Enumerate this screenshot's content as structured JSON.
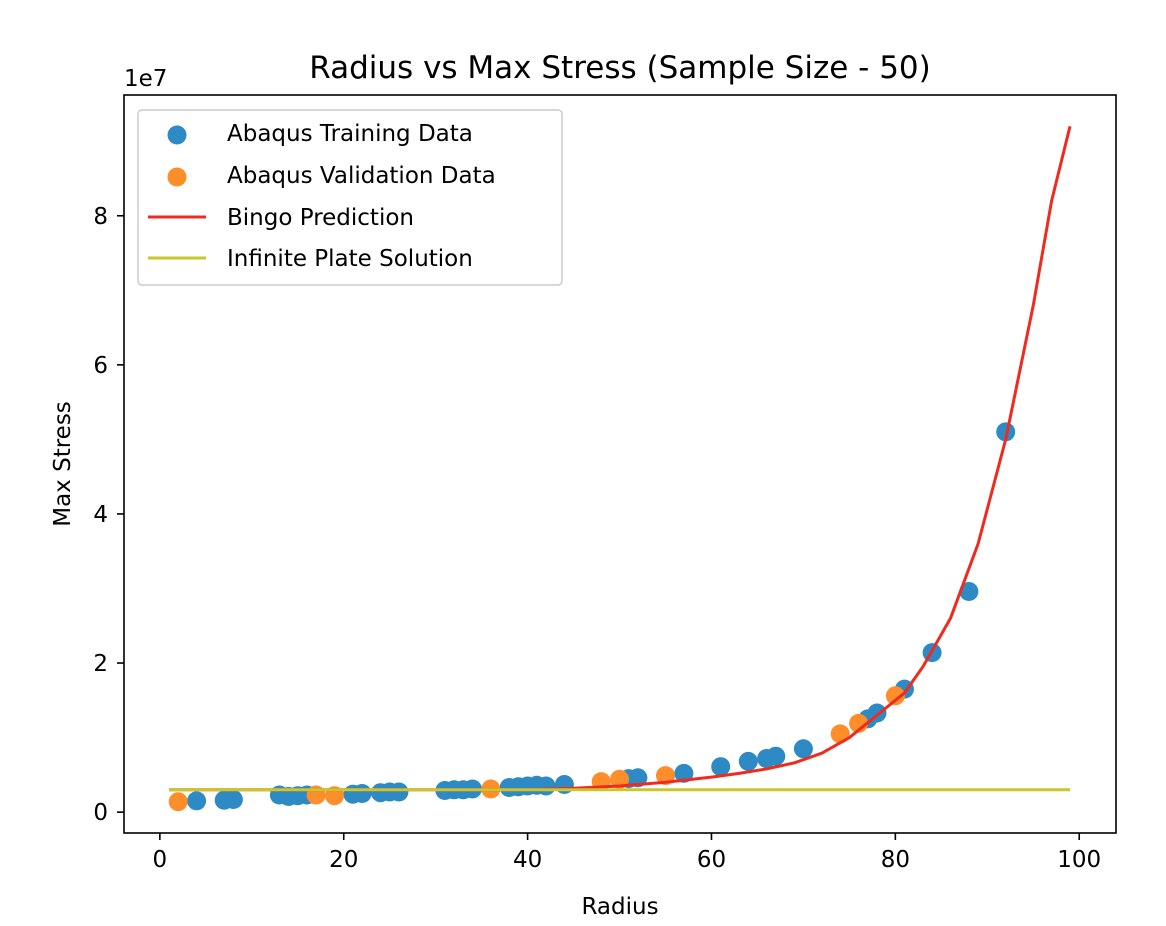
{
  "chart_data": {
    "type": "scatter",
    "title": "Radius vs Max Stress (Sample Size - 50)",
    "xlabel": "Radius",
    "ylabel": "Max Stress",
    "y_multiplier_label": "1e7",
    "xlim": [
      -3.9,
      104
    ],
    "ylim": [
      -0.28,
      9.62
    ],
    "xticks": [
      0,
      20,
      40,
      60,
      80,
      100
    ],
    "yticks": [
      0,
      2,
      4,
      6,
      8
    ],
    "grid": false,
    "legend_position": "upper-left",
    "series": [
      {
        "name": "Abaqus Training Data",
        "kind": "scatter",
        "color": "#2e8ac4",
        "x": [
          4,
          7,
          8,
          13,
          14,
          15,
          16,
          21,
          22,
          24,
          25,
          26,
          31,
          32,
          33,
          34,
          38,
          39,
          40,
          41,
          42,
          44,
          51,
          52,
          57,
          61,
          64,
          66,
          67,
          70,
          77,
          78,
          81,
          84,
          88,
          92
        ],
        "y": [
          0.15,
          0.16,
          0.17,
          0.23,
          0.21,
          0.22,
          0.23,
          0.24,
          0.25,
          0.26,
          0.27,
          0.27,
          0.29,
          0.3,
          0.3,
          0.31,
          0.33,
          0.34,
          0.35,
          0.36,
          0.35,
          0.37,
          0.45,
          0.46,
          0.52,
          0.61,
          0.68,
          0.72,
          0.75,
          0.85,
          1.25,
          1.33,
          1.65,
          2.14,
          2.96,
          5.1
        ]
      },
      {
        "name": "Abaqus Validation Data",
        "kind": "scatter",
        "color": "#fd8e2a",
        "x": [
          2,
          17,
          19,
          36,
          48,
          50,
          55,
          74,
          76,
          80
        ],
        "y": [
          0.14,
          0.23,
          0.22,
          0.31,
          0.41,
          0.44,
          0.49,
          1.05,
          1.19,
          1.56
        ]
      },
      {
        "name": "Bingo Prediction",
        "kind": "line",
        "color": "#ef2b1f",
        "x": [
          1,
          10,
          20,
          30,
          40,
          45,
          50,
          55,
          60,
          63,
          66,
          69,
          72,
          75,
          78,
          81,
          83,
          86,
          89,
          92,
          95,
          97,
          99
        ],
        "y": [
          0.3,
          0.3,
          0.3,
          0.3,
          0.3,
          0.32,
          0.35,
          0.4,
          0.47,
          0.52,
          0.58,
          0.66,
          0.79,
          1.0,
          1.3,
          1.6,
          1.95,
          2.6,
          3.6,
          5.0,
          6.8,
          8.2,
          9.2
        ]
      },
      {
        "name": "Infinite Plate Solution",
        "kind": "line",
        "color": "#c9c72e",
        "x": [
          1,
          99
        ],
        "y": [
          0.3,
          0.3
        ]
      }
    ]
  }
}
